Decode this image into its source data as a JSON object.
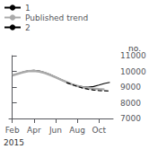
{
  "chart_data": {
    "type": "line",
    "title": "no.",
    "annotations": [
      "2015"
    ],
    "xlim": [
      -0.3,
      9.3
    ],
    "xticks": [
      {
        "value": 0,
        "label": "Feb"
      },
      {
        "value": 2,
        "label": "Apr"
      },
      {
        "value": 4,
        "label": "Jun"
      },
      {
        "value": 6,
        "label": "Aug"
      },
      {
        "value": 8,
        "label": "Oct"
      }
    ],
    "ylim": [
      7000,
      11000
    ],
    "yticks": [
      7000,
      8000,
      9000,
      10000,
      11000
    ],
    "grid": false,
    "legend": "upper left",
    "series": [
      {
        "name": "1",
        "color": "#000000",
        "line_style": "solid",
        "x": [
          0,
          0.3,
          0.6,
          1.0,
          1.5,
          2.0,
          2.5,
          3.0,
          3.5,
          4.0,
          4.5,
          5.0,
          5.5,
          6.0,
          6.5,
          7.0,
          7.5,
          8.0,
          8.5,
          9.0
        ],
        "values": [
          9750,
          9810,
          9870,
          9960,
          10040,
          10060,
          10020,
          9930,
          9800,
          9640,
          9480,
          9320,
          9180,
          9080,
          9020,
          9000,
          9040,
          9130,
          9230,
          9300
        ]
      },
      {
        "name": "Published trend",
        "color": "#aaaaaa",
        "line_style": "solid",
        "x": [
          0,
          0.5,
          1.0,
          1.5,
          2.0,
          2.5,
          3.0,
          3.5,
          4.0,
          4.5,
          5.0,
          5.5,
          6.0,
          6.5,
          7.0,
          7.5,
          8.0,
          8.5
        ],
        "values": [
          9740,
          9840,
          9940,
          10010,
          10030,
          9990,
          9900,
          9770,
          9620,
          9470,
          9320,
          9180,
          9070,
          8990,
          8940,
          8900,
          8870,
          8850
        ]
      },
      {
        "name": "2",
        "color": "#000000",
        "line_style": "dashed",
        "x": [
          5.0,
          5.5,
          6.0,
          6.5,
          7.0,
          7.5,
          8.0,
          8.5,
          9.0
        ],
        "values": [
          9280,
          9160,
          9040,
          8940,
          8860,
          8810,
          8780,
          8760,
          8740
        ]
      }
    ]
  }
}
